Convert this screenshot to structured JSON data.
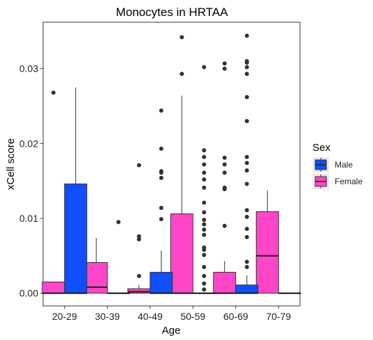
{
  "chart_data": {
    "type": "boxplot",
    "title": "Monocytes in HRTAA",
    "xlabel": "Age",
    "ylabel": "xCell score",
    "ylim": [
      -0.0017,
      0.0362
    ],
    "yticks": [
      0.0,
      0.01,
      0.02,
      0.03
    ],
    "ytick_labels": [
      "0.00",
      "0.01",
      "0.02",
      "0.03"
    ],
    "categories": [
      "20-29",
      "30-39",
      "40-49",
      "50-59",
      "60-69",
      "70-79"
    ],
    "grid": false,
    "legend": {
      "title": "Sex",
      "position": "right",
      "entries": [
        {
          "name": "Male",
          "color": "#0f4fff"
        },
        {
          "name": "Female",
          "color": "#ff46c8"
        }
      ]
    },
    "colors": {
      "Male": "#0f4fff",
      "Female": "#ff46c8"
    },
    "series": [
      {
        "name": "Female",
        "boxes": [
          {
            "category": "20-29",
            "min": 0.0,
            "q1": 0.0,
            "median": 0.0,
            "q3": 0.0015,
            "max": 0.0015,
            "outliers": [
              0.0268
            ]
          },
          {
            "category": "30-39",
            "min": 0.0,
            "q1": 0.0,
            "median": 0.0008,
            "q3": 0.0041,
            "max": 0.0074,
            "outliers": []
          },
          {
            "category": "40-49",
            "min": 0.0,
            "q1": 0.0,
            "median": 0.0002,
            "q3": 0.0006,
            "max": 0.0011,
            "outliers": [
              0.0023,
              0.0072,
              0.0076,
              0.0171
            ]
          },
          {
            "category": "50-59",
            "min": 0.0,
            "q1": 0.0,
            "median": 0.0,
            "q3": 0.0106,
            "max": 0.0264,
            "outliers": [
              0.0293,
              0.0342
            ]
          },
          {
            "category": "60-69",
            "min": 0.0,
            "q1": 0.0,
            "median": 0.0,
            "q3": 0.0028,
            "max": 0.0043,
            "outliers": [
              0.009,
              0.0139,
              0.0141,
              0.0161,
              0.0172,
              0.0181,
              0.03,
              0.0307
            ]
          },
          {
            "category": "70-79",
            "min": 0.0,
            "q1": 0.0,
            "median": 0.005,
            "q3": 0.0109,
            "max": 0.0137,
            "outliers": []
          }
        ]
      },
      {
        "name": "Male",
        "boxes": [
          {
            "category": "20-29",
            "min": 0.0,
            "q1": 0.0,
            "median": 0.0,
            "q3": 0.0146,
            "max": 0.0275,
            "outliers": []
          },
          {
            "category": "30-39",
            "min": 0.0,
            "q1": 0.0,
            "median": 0.0,
            "q3": 0.0,
            "max": 0.0,
            "outliers": [
              0.0095
            ]
          },
          {
            "category": "40-49",
            "min": 0.0,
            "q1": 0.0,
            "median": 0.0,
            "q3": 0.0028,
            "max": 0.0057,
            "outliers": [
              0.0099,
              0.0114,
              0.0154,
              0.0161,
              0.0163,
              0.0193,
              0.0244
            ]
          },
          {
            "category": "50-59",
            "min": 0.0,
            "q1": 0.0,
            "median": 0.0,
            "q3": 0.0,
            "max": 0.0,
            "outliers": [
              0.0005,
              0.0013,
              0.0023,
              0.0035,
              0.0051,
              0.0058,
              0.0061,
              0.0078,
              0.0085,
              0.0092,
              0.0098,
              0.0108,
              0.0121,
              0.0141,
              0.0152,
              0.0161,
              0.0172,
              0.0182,
              0.0191,
              0.0302
            ]
          },
          {
            "category": "60-69",
            "min": 0.0,
            "q1": 0.0,
            "median": 0.0,
            "q3": 0.0011,
            "max": 0.0024,
            "outliers": [
              0.0035,
              0.0042,
              0.0075,
              0.0086,
              0.0102,
              0.0111,
              0.0146,
              0.0164,
              0.0174,
              0.0182,
              0.023,
              0.0262,
              0.0293,
              0.0302,
              0.0308,
              0.031,
              0.0344
            ]
          },
          {
            "category": "70-79",
            "min": 0.0,
            "q1": 0.0,
            "median": 0.0,
            "q3": 0.0,
            "max": 0.0,
            "outliers": []
          }
        ]
      }
    ]
  }
}
